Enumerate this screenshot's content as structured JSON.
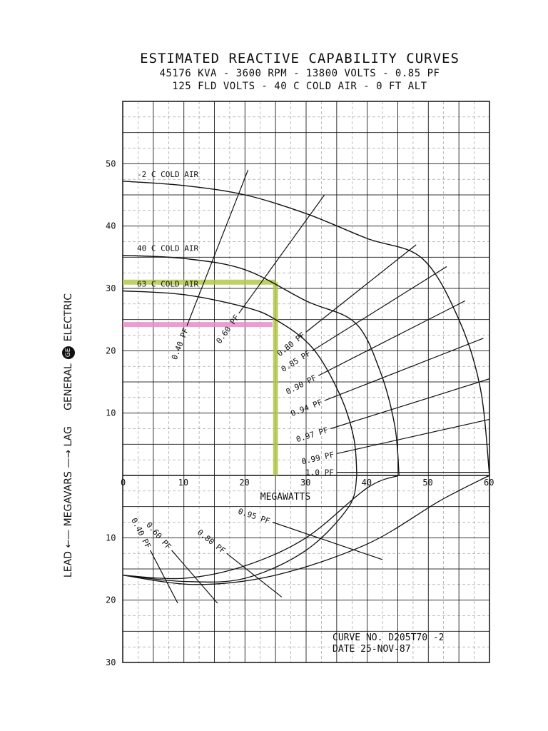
{
  "header": {
    "title": "ESTIMATED REACTIVE CAPABILITY CURVES",
    "line2": "45176  KVA - 3600 RPM - 13800 VOLTS - 0.85 PF",
    "line3": "125 FLD VOLTS - 40 C COLD AIR - 0 FT ALT"
  },
  "side": {
    "lead": "LEAD",
    "megavars": "MEGAVARS",
    "lag": "LAG",
    "general": "GENERAL",
    "logo": "GE",
    "electric": "ELECTRIC"
  },
  "footer": {
    "curve_no": "CURVE NO. D205T70 -2",
    "date": "DATE 25-NOV-87"
  },
  "colors": {
    "ink": "#111111",
    "highlight_green": "#b5c84a",
    "highlight_pink": "#e98bc8"
  },
  "chart_data": {
    "type": "line",
    "xlabel": "MEGAWATTS",
    "ylabel": "",
    "xlim": [
      0,
      60
    ],
    "ylim": [
      -30,
      60
    ],
    "x_ticks": [
      0,
      10,
      20,
      30,
      40,
      50,
      60
    ],
    "y_ticks_lag": [
      10,
      20,
      30,
      40,
      50
    ],
    "y_ticks_lead": [
      10,
      20,
      30
    ],
    "grid": true,
    "series": [
      {
        "name": "-2 C COLD AIR",
        "points": [
          [
            0,
            47.2
          ],
          [
            10,
            46.5
          ],
          [
            20,
            45
          ],
          [
            30,
            42
          ],
          [
            40,
            38
          ],
          [
            49,
            34.8
          ],
          [
            55,
            25
          ],
          [
            58.5,
            14
          ],
          [
            60,
            0
          ]
        ]
      },
      {
        "name": "40 C COLD AIR",
        "points": [
          [
            0,
            35.3
          ],
          [
            10,
            34.8
          ],
          [
            20,
            33
          ],
          [
            30,
            28
          ],
          [
            38,
            24.5
          ],
          [
            42,
            17
          ],
          [
            44.5,
            8
          ],
          [
            45.2,
            0
          ]
        ]
      },
      {
        "name": "63 C COLD AIR",
        "points": [
          [
            0,
            29.6
          ],
          [
            10,
            29
          ],
          [
            20,
            27
          ],
          [
            25,
            25
          ],
          [
            31,
            20.5
          ],
          [
            35.5,
            13
          ],
          [
            37.8,
            6
          ],
          [
            38.3,
            0
          ]
        ]
      }
    ],
    "pf_lines_lag": [
      {
        "label": "0.40 PF",
        "from": [
          10.5,
          24
        ],
        "to": [
          20.5,
          49
        ]
      },
      {
        "label": "0.60 PF",
        "from": [
          19,
          26
        ],
        "to": [
          33,
          45
        ]
      },
      {
        "label": "0.80 PF",
        "from": [
          30,
          23
        ],
        "to": [
          48,
          37
        ]
      },
      {
        "label": "0.85 PF",
        "from": [
          31,
          20
        ],
        "to": [
          53,
          33.5
        ]
      },
      {
        "label": "0.90 PF",
        "from": [
          32,
          16
        ],
        "to": [
          56,
          28
        ]
      },
      {
        "label": "0.94 PF",
        "from": [
          33,
          12
        ],
        "to": [
          59,
          22
        ]
      },
      {
        "label": "0.97 PF",
        "from": [
          34,
          7.5
        ],
        "to": [
          60,
          15.5
        ]
      },
      {
        "label": "0.99 PF",
        "from": [
          35,
          3.5
        ],
        "to": [
          60,
          9
        ]
      },
      {
        "label": "1.0 PF",
        "from": [
          35,
          0.5
        ],
        "to": [
          60,
          0.5
        ]
      }
    ],
    "lead_curves": [
      {
        "points": [
          [
            0,
            -16
          ],
          [
            10,
            -16.5
          ],
          [
            20,
            -14.5
          ],
          [
            30,
            -10
          ],
          [
            40,
            -2
          ],
          [
            45.2,
            0
          ]
        ]
      },
      {
        "points": [
          [
            0,
            -16
          ],
          [
            10,
            -17
          ],
          [
            20,
            -16.5
          ],
          [
            30,
            -12
          ],
          [
            37,
            -5
          ],
          [
            38.3,
            0
          ]
        ]
      },
      {
        "points": [
          [
            0,
            -16
          ],
          [
            12,
            -17.5
          ],
          [
            25,
            -16
          ],
          [
            40,
            -11
          ],
          [
            52,
            -4
          ],
          [
            60,
            0
          ]
        ]
      }
    ],
    "pf_lines_lead": [
      {
        "label": "0.40 PF",
        "from": [
          4.5,
          -12
        ],
        "to": [
          9,
          -20.5
        ]
      },
      {
        "label": "0.60 PF",
        "from": [
          8,
          -12
        ],
        "to": [
          15.5,
          -20.5
        ]
      },
      {
        "label": "0.80 PF",
        "from": [
          17,
          -12.5
        ],
        "to": [
          26,
          -19.5
        ]
      },
      {
        "label": "0.95 PF",
        "from": [
          24.5,
          -7.5
        ],
        "to": [
          42.5,
          -13.5
        ]
      }
    ],
    "annotations": [
      {
        "text": "-2 C COLD AIR"
      },
      {
        "text": "40 C COLD AIR"
      },
      {
        "text": "63 C COLD AIR"
      }
    ],
    "highlights": [
      {
        "color": "green",
        "x": 25,
        "y_from": 0,
        "y_to": 31
      },
      {
        "color": "green",
        "y": 31,
        "x_from": 0,
        "x_to": 25
      },
      {
        "color": "pink",
        "y": 24.2,
        "x_from": 0,
        "x_to": 24.5
      }
    ]
  }
}
